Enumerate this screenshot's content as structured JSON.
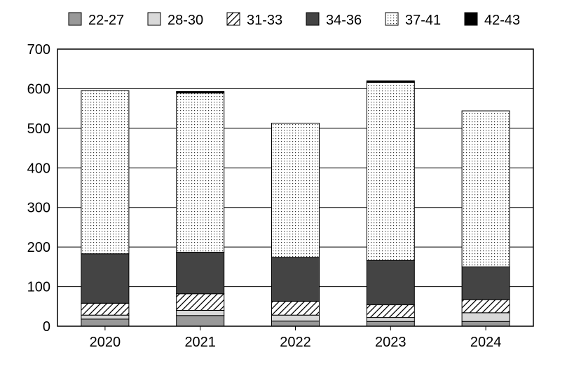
{
  "chart_data": {
    "type": "bar",
    "stacked": true,
    "title": "",
    "xlabel": "",
    "ylabel": "",
    "ylim": [
      0,
      700
    ],
    "yticks": [
      0,
      100,
      200,
      300,
      400,
      500,
      600,
      700
    ],
    "grid": true,
    "legend_position": "top",
    "categories": [
      "2020",
      "2021",
      "2022",
      "2023",
      "2024"
    ],
    "series": [
      {
        "name": "22-27",
        "fill": "#999999",
        "pattern": "solid",
        "values": [
          18,
          27,
          13,
          12,
          12
        ]
      },
      {
        "name": "28-30",
        "fill": "#d9d9d9",
        "pattern": "solid",
        "values": [
          10,
          13,
          15,
          10,
          22
        ]
      },
      {
        "name": "31-33",
        "fill": "#ffffff",
        "pattern": "hatch",
        "values": [
          30,
          42,
          35,
          32,
          33
        ]
      },
      {
        "name": "34-36",
        "fill": "#444444",
        "pattern": "solid",
        "values": [
          125,
          105,
          111,
          112,
          83
        ]
      },
      {
        "name": "37-41",
        "fill": "#ffffff",
        "pattern": "dots",
        "values": [
          412,
          402,
          339,
          450,
          394
        ]
      },
      {
        "name": "42-43",
        "fill": "#000000",
        "pattern": "solid",
        "values": [
          0,
          4,
          0,
          4,
          0
        ]
      }
    ]
  }
}
